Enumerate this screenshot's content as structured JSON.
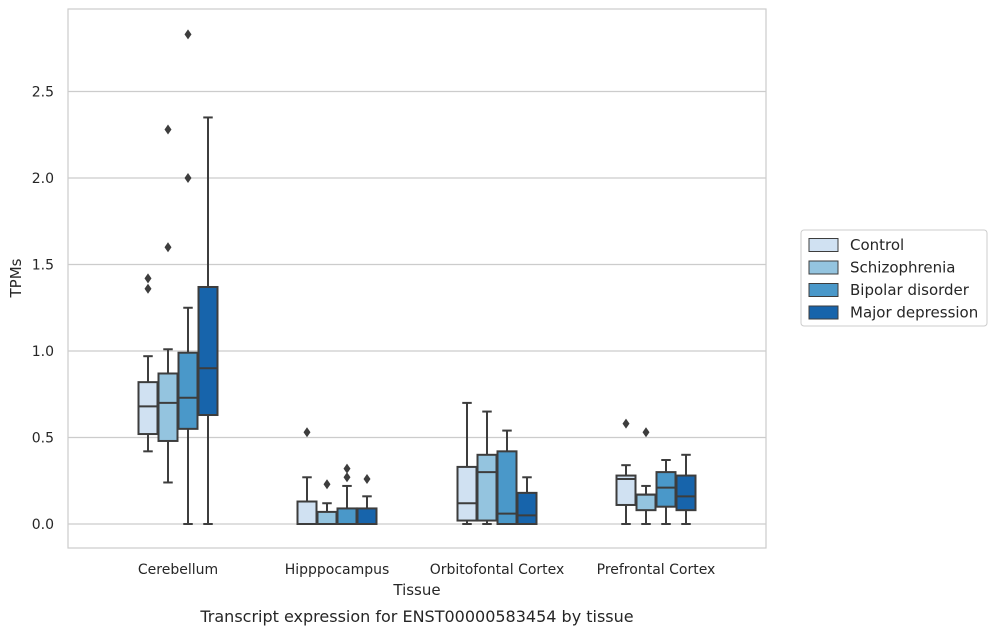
{
  "chart_data": {
    "type": "box",
    "xlabel": "Tissue",
    "ylabel": "TPMs",
    "caption": "Transcript expression for ENST00000583454 by tissue",
    "ylim": [
      -0.14,
      2.98
    ],
    "yticks": [
      0.0,
      0.5,
      1.0,
      1.5,
      2.0,
      2.5
    ],
    "ytick_labels": [
      "0.0",
      "0.5",
      "1.0",
      "1.5",
      "2.0",
      "2.5"
    ],
    "grid": "horizontal",
    "legend_position": "right",
    "categories": [
      "Cerebellum",
      "Hipppocampus",
      "Orbitofontal Cortex",
      "Prefrontal Cortex"
    ],
    "series": [
      {
        "name": "Control",
        "color": "#d0e1f2",
        "boxes": [
          {
            "whisker_low": 0.42,
            "q1": 0.52,
            "median": 0.68,
            "q3": 0.82,
            "whisker_high": 0.97,
            "outliers": [
              1.36,
              1.42
            ]
          },
          {
            "whisker_low": 0.0,
            "q1": 0.0,
            "median": 0.0,
            "q3": 0.13,
            "whisker_high": 0.27,
            "outliers": [
              0.53
            ]
          },
          {
            "whisker_low": 0.0,
            "q1": 0.02,
            "median": 0.12,
            "q3": 0.33,
            "whisker_high": 0.7,
            "outliers": []
          },
          {
            "whisker_low": 0.0,
            "q1": 0.11,
            "median": 0.26,
            "q3": 0.28,
            "whisker_high": 0.34,
            "outliers": [
              0.58
            ]
          }
        ]
      },
      {
        "name": "Schizophrenia",
        "color": "#94c4df",
        "boxes": [
          {
            "whisker_low": 0.24,
            "q1": 0.48,
            "median": 0.7,
            "q3": 0.87,
            "whisker_high": 1.01,
            "outliers": [
              1.6,
              2.28
            ]
          },
          {
            "whisker_low": 0.0,
            "q1": 0.0,
            "median": 0.0,
            "q3": 0.07,
            "whisker_high": 0.12,
            "outliers": [
              0.23
            ]
          },
          {
            "whisker_low": 0.0,
            "q1": 0.02,
            "median": 0.3,
            "q3": 0.4,
            "whisker_high": 0.65,
            "outliers": []
          },
          {
            "whisker_low": 0.0,
            "q1": 0.08,
            "median": 0.17,
            "q3": 0.17,
            "whisker_high": 0.22,
            "outliers": [
              0.53
            ]
          }
        ]
      },
      {
        "name": "Bipolar disorder",
        "color": "#4a98c9",
        "boxes": [
          {
            "whisker_low": 0.0,
            "q1": 0.55,
            "median": 0.73,
            "q3": 0.99,
            "whisker_high": 1.25,
            "outliers": [
              2.0,
              2.83
            ]
          },
          {
            "whisker_low": 0.0,
            "q1": 0.0,
            "median": 0.0,
            "q3": 0.09,
            "whisker_high": 0.22,
            "outliers": [
              0.27,
              0.32
            ]
          },
          {
            "whisker_low": 0.0,
            "q1": 0.0,
            "median": 0.06,
            "q3": 0.42,
            "whisker_high": 0.54,
            "outliers": []
          },
          {
            "whisker_low": 0.0,
            "q1": 0.1,
            "median": 0.21,
            "q3": 0.3,
            "whisker_high": 0.37,
            "outliers": []
          }
        ]
      },
      {
        "name": "Major depression",
        "color": "#1764ab",
        "boxes": [
          {
            "whisker_low": 0.0,
            "q1": 0.63,
            "median": 0.9,
            "q3": 1.37,
            "whisker_high": 2.35,
            "outliers": []
          },
          {
            "whisker_low": 0.0,
            "q1": 0.0,
            "median": 0.0,
            "q3": 0.09,
            "whisker_high": 0.16,
            "outliers": [
              0.26
            ]
          },
          {
            "whisker_low": 0.0,
            "q1": 0.0,
            "median": 0.05,
            "q3": 0.18,
            "whisker_high": 0.27,
            "outliers": []
          },
          {
            "whisker_low": 0.0,
            "q1": 0.08,
            "median": 0.16,
            "q3": 0.28,
            "whisker_high": 0.4,
            "outliers": []
          }
        ]
      }
    ]
  },
  "colors": {
    "grid": "#cccccc",
    "axes_edge": "#cccccc",
    "box_edge": "#3d3d3d",
    "text": "#262626"
  }
}
